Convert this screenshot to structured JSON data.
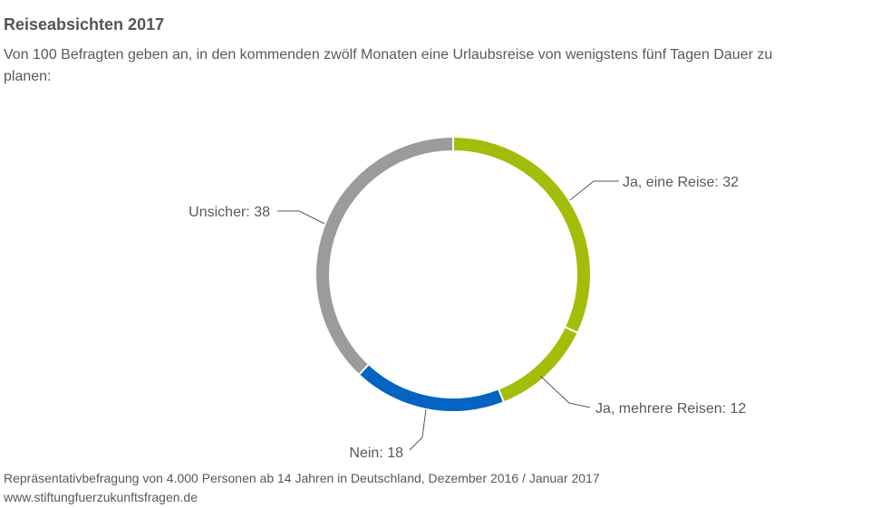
{
  "chart_data": {
    "type": "pie",
    "style": "donut",
    "title": "Reiseabsichten 2017",
    "subtitle": "Von 100 Befragten geben an, in den kommenden zwölf Monaten eine Urlaubsreise von wenigstens fünf Tagen Dauer zu planen:",
    "slices": [
      {
        "label": "Ja, eine Reise",
        "value": 32,
        "color": "#a3bd0a",
        "label_text": "Ja, eine Reise: 32"
      },
      {
        "label": "Ja, mehrere Reisen",
        "value": 12,
        "color": "#a3bd0a",
        "label_text": "Ja, mehrere Reisen: 12"
      },
      {
        "label": "Nein",
        "value": 18,
        "color": "#0563c1",
        "label_text": "Nein: 18"
      },
      {
        "label": "Unsicher",
        "value": 38,
        "color": "#9b9b9b",
        "label_text": "Unsicher: 38"
      }
    ]
  },
  "footer": {
    "note": "Repräsentativbefragung von 4.000 Personen ab 14 Jahren in Deutschland, Dezember 2016 / Januar 2017",
    "source": "www.stiftungfuerzukunftsfragen.de"
  }
}
